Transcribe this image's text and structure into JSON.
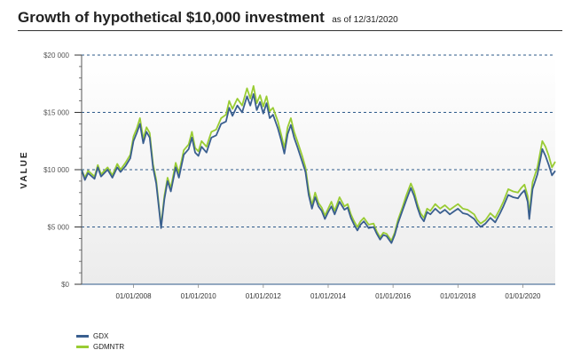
{
  "header": {
    "title": "Growth of hypothetical $10,000 investment",
    "subtitle": "as of 12/31/2020"
  },
  "colors": {
    "gdx": "#3a5f8f",
    "gdmntr": "#99cc33",
    "grid": "#2e5a8a"
  },
  "legend": [
    {
      "label": "GDX",
      "color": "#3a5f8f"
    },
    {
      "label": "GDMNTR",
      "color": "#99cc33"
    }
  ],
  "chart_data": {
    "type": "line",
    "title": "Growth of hypothetical $10,000 investment",
    "ylabel": "VALUE",
    "xlabel": "",
    "ylim": [
      0,
      20000
    ],
    "xlim": [
      2006.4,
      2021.0
    ],
    "y_ticks": [
      0,
      5000,
      10000,
      15000,
      20000
    ],
    "y_tick_labels": [
      "$0",
      "$5 000",
      "$10 000",
      "$15 000",
      "$20 000"
    ],
    "x_ticks": [
      2008,
      2010,
      2012,
      2014,
      2016,
      2018,
      2020
    ],
    "x_tick_labels": [
      "01/01/2008",
      "01/01/2010",
      "01/01/2012",
      "01/01/2014",
      "01/01/2016",
      "01/01/2018",
      "01/01/2020"
    ],
    "series": [
      {
        "name": "GDX",
        "points": [
          [
            2006.4,
            10000
          ],
          [
            2006.5,
            9100
          ],
          [
            2006.6,
            9700
          ],
          [
            2006.8,
            9200
          ],
          [
            2006.9,
            10200
          ],
          [
            2007.0,
            9400
          ],
          [
            2007.2,
            10000
          ],
          [
            2007.35,
            9300
          ],
          [
            2007.5,
            10200
          ],
          [
            2007.6,
            9800
          ],
          [
            2007.75,
            10300
          ],
          [
            2007.9,
            11000
          ],
          [
            2008.0,
            12500
          ],
          [
            2008.1,
            13200
          ],
          [
            2008.2,
            14000
          ],
          [
            2008.3,
            12300
          ],
          [
            2008.4,
            13300
          ],
          [
            2008.5,
            12800
          ],
          [
            2008.6,
            10200
          ],
          [
            2008.7,
            8800
          ],
          [
            2008.8,
            6200
          ],
          [
            2008.85,
            4900
          ],
          [
            2008.95,
            7400
          ],
          [
            2009.05,
            9000
          ],
          [
            2009.15,
            8100
          ],
          [
            2009.3,
            10200
          ],
          [
            2009.4,
            9300
          ],
          [
            2009.55,
            11300
          ],
          [
            2009.7,
            11800
          ],
          [
            2009.8,
            12800
          ],
          [
            2009.9,
            11500
          ],
          [
            2010.0,
            11200
          ],
          [
            2010.1,
            12000
          ],
          [
            2010.25,
            11500
          ],
          [
            2010.4,
            12800
          ],
          [
            2010.55,
            13000
          ],
          [
            2010.7,
            14000
          ],
          [
            2010.85,
            14200
          ],
          [
            2010.95,
            15400
          ],
          [
            2011.05,
            14700
          ],
          [
            2011.2,
            15600
          ],
          [
            2011.35,
            15000
          ],
          [
            2011.5,
            16400
          ],
          [
            2011.6,
            15600
          ],
          [
            2011.7,
            16600
          ],
          [
            2011.8,
            15200
          ],
          [
            2011.9,
            15900
          ],
          [
            2012.0,
            14900
          ],
          [
            2012.1,
            15800
          ],
          [
            2012.2,
            14500
          ],
          [
            2012.3,
            14800
          ],
          [
            2012.45,
            13600
          ],
          [
            2012.55,
            12600
          ],
          [
            2012.65,
            11400
          ],
          [
            2012.75,
            13100
          ],
          [
            2012.85,
            13900
          ],
          [
            2012.95,
            12800
          ],
          [
            2013.05,
            12000
          ],
          [
            2013.2,
            10700
          ],
          [
            2013.3,
            9800
          ],
          [
            2013.4,
            7800
          ],
          [
            2013.5,
            6600
          ],
          [
            2013.6,
            7600
          ],
          [
            2013.7,
            6800
          ],
          [
            2013.8,
            6400
          ],
          [
            2013.9,
            5700
          ],
          [
            2014.0,
            6300
          ],
          [
            2014.1,
            6800
          ],
          [
            2014.2,
            6100
          ],
          [
            2014.35,
            7200
          ],
          [
            2014.5,
            6500
          ],
          [
            2014.6,
            6700
          ],
          [
            2014.7,
            5800
          ],
          [
            2014.8,
            5200
          ],
          [
            2014.9,
            4700
          ],
          [
            2015.0,
            5200
          ],
          [
            2015.1,
            5500
          ],
          [
            2015.25,
            4900
          ],
          [
            2015.4,
            5000
          ],
          [
            2015.5,
            4400
          ],
          [
            2015.6,
            3900
          ],
          [
            2015.7,
            4300
          ],
          [
            2015.8,
            4200
          ],
          [
            2015.95,
            3600
          ],
          [
            2016.05,
            4300
          ],
          [
            2016.15,
            5300
          ],
          [
            2016.3,
            6500
          ],
          [
            2016.4,
            7300
          ],
          [
            2016.55,
            8400
          ],
          [
            2016.65,
            7700
          ],
          [
            2016.75,
            6700
          ],
          [
            2016.85,
            5900
          ],
          [
            2016.95,
            5500
          ],
          [
            2017.05,
            6300
          ],
          [
            2017.15,
            6100
          ],
          [
            2017.3,
            6600
          ],
          [
            2017.45,
            6200
          ],
          [
            2017.6,
            6500
          ],
          [
            2017.75,
            6100
          ],
          [
            2017.9,
            6400
          ],
          [
            2018.0,
            6600
          ],
          [
            2018.15,
            6200
          ],
          [
            2018.3,
            6100
          ],
          [
            2018.5,
            5700
          ],
          [
            2018.6,
            5300
          ],
          [
            2018.7,
            5000
          ],
          [
            2018.85,
            5300
          ],
          [
            2019.0,
            5800
          ],
          [
            2019.15,
            5400
          ],
          [
            2019.3,
            6200
          ],
          [
            2019.4,
            6800
          ],
          [
            2019.55,
            7800
          ],
          [
            2019.7,
            7600
          ],
          [
            2019.85,
            7500
          ],
          [
            2019.95,
            7900
          ],
          [
            2020.05,
            8200
          ],
          [
            2020.15,
            7200
          ],
          [
            2020.2,
            5700
          ],
          [
            2020.3,
            8300
          ],
          [
            2020.45,
            9600
          ],
          [
            2020.55,
            11000
          ],
          [
            2020.6,
            11800
          ],
          [
            2020.7,
            11200
          ],
          [
            2020.8,
            10400
          ],
          [
            2020.9,
            9500
          ],
          [
            2021.0,
            9900
          ]
        ]
      },
      {
        "name": "GDMNTR",
        "points": [
          [
            2006.4,
            10000
          ],
          [
            2006.5,
            9300
          ],
          [
            2006.6,
            9900
          ],
          [
            2006.8,
            9400
          ],
          [
            2006.9,
            10400
          ],
          [
            2007.0,
            9600
          ],
          [
            2007.2,
            10200
          ],
          [
            2007.35,
            9500
          ],
          [
            2007.5,
            10500
          ],
          [
            2007.6,
            10000
          ],
          [
            2007.75,
            10600
          ],
          [
            2007.9,
            11300
          ],
          [
            2008.0,
            12900
          ],
          [
            2008.1,
            13600
          ],
          [
            2008.2,
            14500
          ],
          [
            2008.3,
            12700
          ],
          [
            2008.4,
            13700
          ],
          [
            2008.5,
            13200
          ],
          [
            2008.6,
            10500
          ],
          [
            2008.7,
            9100
          ],
          [
            2008.8,
            6400
          ],
          [
            2008.85,
            5100
          ],
          [
            2008.95,
            7700
          ],
          [
            2009.05,
            9300
          ],
          [
            2009.15,
            8400
          ],
          [
            2009.3,
            10600
          ],
          [
            2009.4,
            9700
          ],
          [
            2009.55,
            11700
          ],
          [
            2009.7,
            12200
          ],
          [
            2009.8,
            13300
          ],
          [
            2009.9,
            11900
          ],
          [
            2010.0,
            11600
          ],
          [
            2010.1,
            12500
          ],
          [
            2010.25,
            12000
          ],
          [
            2010.4,
            13300
          ],
          [
            2010.55,
            13500
          ],
          [
            2010.7,
            14500
          ],
          [
            2010.85,
            14800
          ],
          [
            2010.95,
            16000
          ],
          [
            2011.05,
            15300
          ],
          [
            2011.2,
            16200
          ],
          [
            2011.35,
            15600
          ],
          [
            2011.5,
            17100
          ],
          [
            2011.6,
            16200
          ],
          [
            2011.7,
            17300
          ],
          [
            2011.8,
            15800
          ],
          [
            2011.9,
            16500
          ],
          [
            2012.0,
            15500
          ],
          [
            2012.1,
            16400
          ],
          [
            2012.2,
            15100
          ],
          [
            2012.3,
            15400
          ],
          [
            2012.45,
            14200
          ],
          [
            2012.55,
            13100
          ],
          [
            2012.65,
            11900
          ],
          [
            2012.75,
            13700
          ],
          [
            2012.85,
            14500
          ],
          [
            2012.95,
            13300
          ],
          [
            2013.05,
            12500
          ],
          [
            2013.2,
            11200
          ],
          [
            2013.3,
            10200
          ],
          [
            2013.4,
            8200
          ],
          [
            2013.5,
            6900
          ],
          [
            2013.6,
            8000
          ],
          [
            2013.7,
            7100
          ],
          [
            2013.8,
            6700
          ],
          [
            2013.9,
            6000
          ],
          [
            2014.0,
            6600
          ],
          [
            2014.1,
            7200
          ],
          [
            2014.2,
            6400
          ],
          [
            2014.35,
            7600
          ],
          [
            2014.5,
            6800
          ],
          [
            2014.6,
            7000
          ],
          [
            2014.7,
            6100
          ],
          [
            2014.8,
            5500
          ],
          [
            2014.9,
            5000
          ],
          [
            2015.0,
            5500
          ],
          [
            2015.1,
            5800
          ],
          [
            2015.25,
            5200
          ],
          [
            2015.4,
            5300
          ],
          [
            2015.5,
            4600
          ],
          [
            2015.6,
            4100
          ],
          [
            2015.7,
            4500
          ],
          [
            2015.8,
            4400
          ],
          [
            2015.95,
            3800
          ],
          [
            2016.05,
            4500
          ],
          [
            2016.15,
            5600
          ],
          [
            2016.3,
            6800
          ],
          [
            2016.4,
            7700
          ],
          [
            2016.55,
            8800
          ],
          [
            2016.65,
            8100
          ],
          [
            2016.75,
            7000
          ],
          [
            2016.85,
            6200
          ],
          [
            2016.95,
            5800
          ],
          [
            2017.05,
            6600
          ],
          [
            2017.15,
            6400
          ],
          [
            2017.3,
            7000
          ],
          [
            2017.45,
            6600
          ],
          [
            2017.6,
            6900
          ],
          [
            2017.75,
            6500
          ],
          [
            2017.9,
            6800
          ],
          [
            2018.0,
            7000
          ],
          [
            2018.15,
            6600
          ],
          [
            2018.3,
            6500
          ],
          [
            2018.5,
            6100
          ],
          [
            2018.6,
            5600
          ],
          [
            2018.7,
            5300
          ],
          [
            2018.85,
            5600
          ],
          [
            2019.0,
            6200
          ],
          [
            2019.15,
            5800
          ],
          [
            2019.3,
            6600
          ],
          [
            2019.4,
            7200
          ],
          [
            2019.55,
            8300
          ],
          [
            2019.7,
            8100
          ],
          [
            2019.85,
            8000
          ],
          [
            2019.95,
            8400
          ],
          [
            2020.05,
            8700
          ],
          [
            2020.15,
            7700
          ],
          [
            2020.2,
            6100
          ],
          [
            2020.3,
            8900
          ],
          [
            2020.45,
            10200
          ],
          [
            2020.55,
            11700
          ],
          [
            2020.6,
            12500
          ],
          [
            2020.7,
            12000
          ],
          [
            2020.8,
            11200
          ],
          [
            2020.9,
            10200
          ],
          [
            2021.0,
            10700
          ]
        ]
      }
    ]
  }
}
